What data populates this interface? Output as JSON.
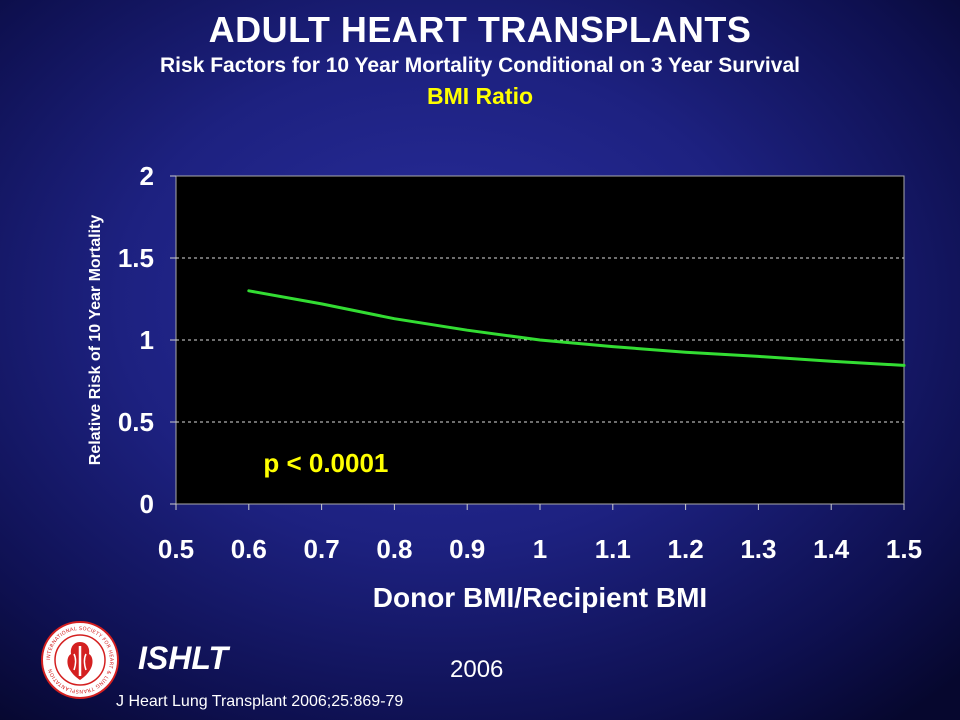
{
  "slide": {
    "title": "ADULT HEART TRANSPLANTS",
    "subtitle": "Risk Factors for 10 Year Mortality Conditional on 3 Year Survival",
    "topic": "BMI Ratio"
  },
  "footer": {
    "org": "ISHLT",
    "year": "2006",
    "citation": "J Heart Lung Transplant 2006;25:869-79",
    "logo_icon": "ishlt-seal-icon",
    "logo_text": "INTERNATIONAL SOCIETY FOR HEART & LUNG TRANSPLANTATION"
  },
  "colors": {
    "background": "#1d2180",
    "plot_area": "#000000",
    "curve": "#33dd33",
    "accent_text": "#ffff00",
    "logo_red": "#d42020"
  },
  "chart_data": {
    "type": "line",
    "title": "",
    "xlabel": "Donor BMI/Recipient BMI",
    "ylabel": "Relative Risk of 10 Year Mortality",
    "xlim": [
      0.5,
      1.5
    ],
    "ylim": [
      0,
      2
    ],
    "x_ticks": [
      "0.5",
      "0.6",
      "0.7",
      "0.8",
      "0.9",
      "1",
      "1.1",
      "1.2",
      "1.3",
      "1.4",
      "1.5"
    ],
    "y_ticks": [
      "0",
      "0.5",
      "1",
      "1.5",
      "2"
    ],
    "grid": "horizontal dashed",
    "series": [
      {
        "x": [
          0.6,
          0.7,
          0.8,
          0.9,
          1.0,
          1.1,
          1.2,
          1.3,
          1.4,
          1.5
        ],
        "y": [
          1.3,
          1.22,
          1.13,
          1.06,
          1.0,
          0.96,
          0.925,
          0.9,
          0.87,
          0.845
        ]
      }
    ],
    "annotations": [
      {
        "text": "p < 0.0001",
        "x": 0.62,
        "y": 0.25
      }
    ]
  }
}
